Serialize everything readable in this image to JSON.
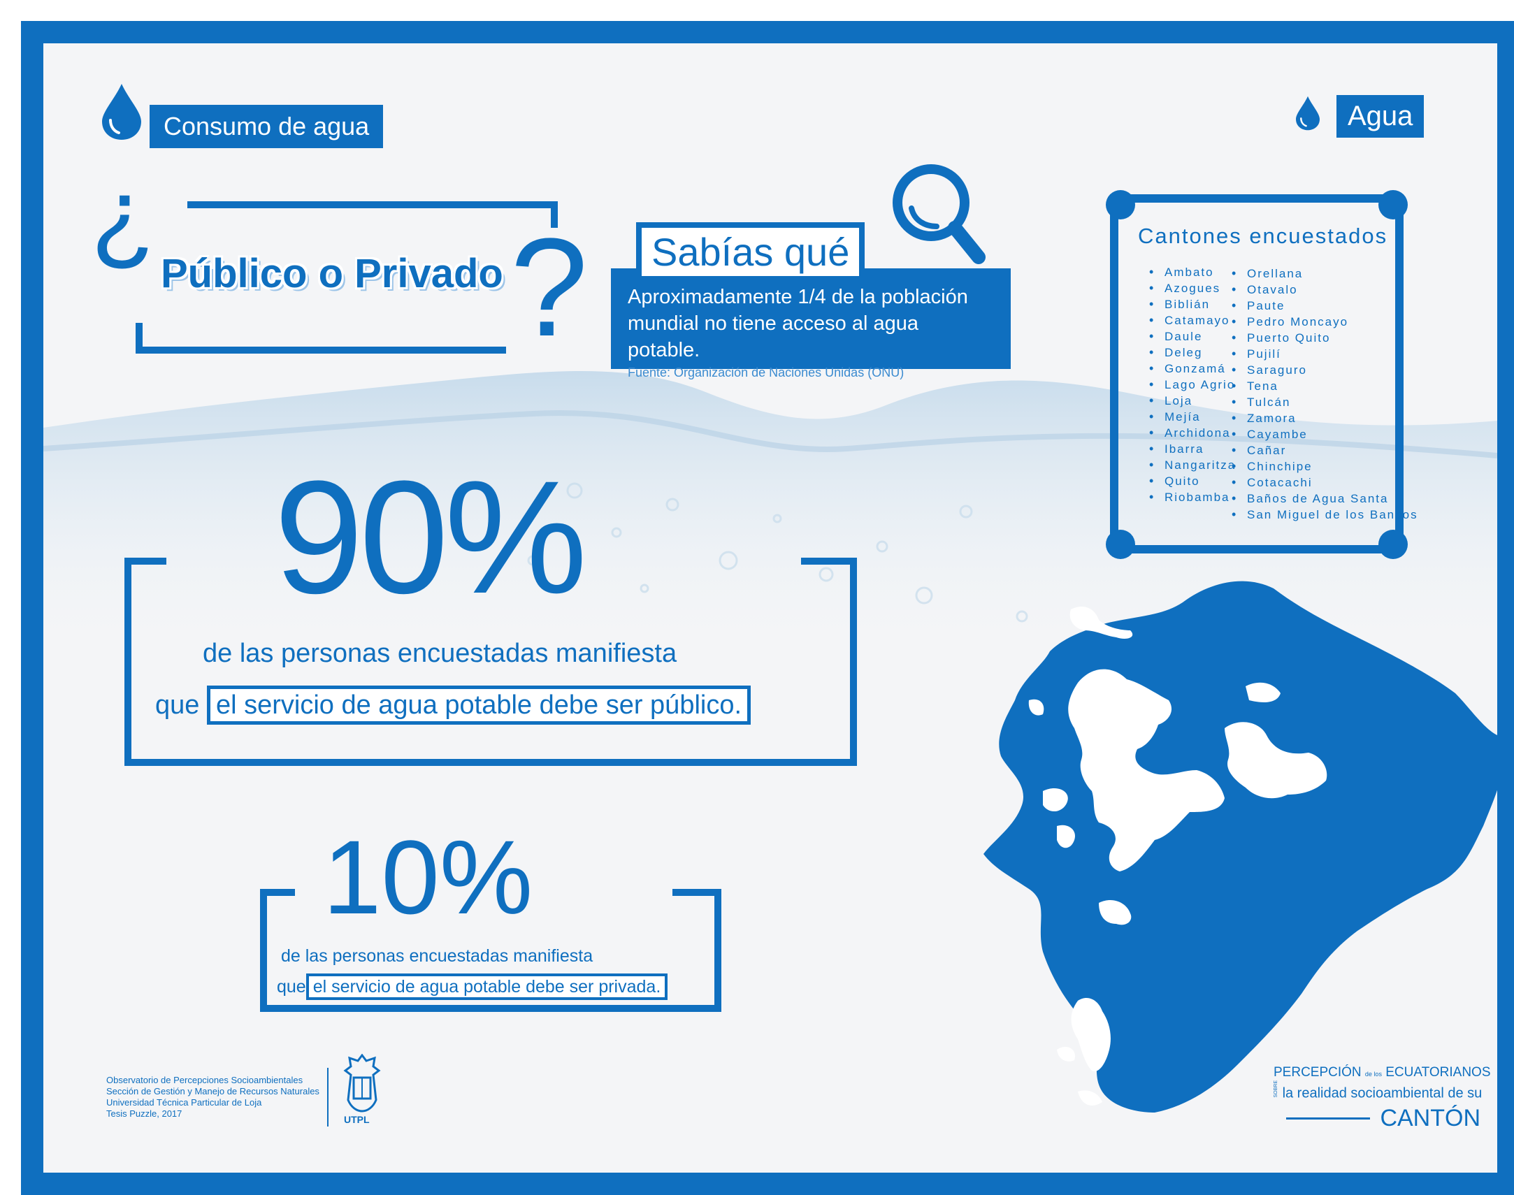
{
  "header": {
    "consumo_label": "Consumo de agua",
    "agua_label": "Agua"
  },
  "title": {
    "open_q": "¿",
    "text": "Público o Privado",
    "close_q": "?"
  },
  "sabias": {
    "heading": "Sabías qué",
    "line1": "Aproximadamente 1/4 de la población",
    "line2": "mundial no tiene acceso al agua potable.",
    "source": "Fuente: Organización de Naciones Unidas (ONU)"
  },
  "cantones": {
    "heading": "Cantones encuestados",
    "col1": [
      "Ambato",
      "Azogues",
      "Biblián",
      "Catamayo",
      "Daule",
      "Deleg",
      "Gonzamá",
      "Lago Agrio",
      "Loja",
      "Mejía",
      "Archidona",
      "Ibarra",
      "Nangaritza",
      "Quito",
      "Riobamba"
    ],
    "col2": [
      "Orellana",
      "Otavalo",
      "Paute",
      "Pedro Moncayo",
      "Puerto Quito",
      "Pujilí",
      "Saraguro",
      "Tena",
      "Tulcán",
      "Zamora",
      "Cayambe",
      "Cañar",
      "Chinchipe",
      "Cotacachi",
      "Baños de Agua Santa",
      "San Miguel de los Bancos"
    ]
  },
  "stat90": {
    "value": "90%",
    "line1": "de las personas encuestadas manifiesta",
    "prefix": "que",
    "boxed": "el servicio de agua potable debe ser público."
  },
  "stat10": {
    "value": "10%",
    "line1": "de las personas encuestadas manifiesta",
    "prefix": "que",
    "boxed": "el servicio de agua potable debe ser privada."
  },
  "footer": {
    "line1": "Observatorio de Percepciones Socioambientales",
    "line2": "Sección de Gestión y Manejo de Recursos Naturales",
    "line3": "Universidad Técnica Particular de Loja",
    "line4": "Tesis Puzzle, 2017",
    "logo_text": "UTPL"
  },
  "brand": {
    "percepcion": "PERCEPCIÓN",
    "de_los": "de los",
    "ecuatorianos": "ECUATORIANOS",
    "sobre": "SOBRE",
    "realidad": "la realidad socioambiental de su",
    "canton": "CANTÓN"
  },
  "colors": {
    "primary": "#0f6fbf",
    "background": "#f4f5f7",
    "white": "#ffffff"
  }
}
